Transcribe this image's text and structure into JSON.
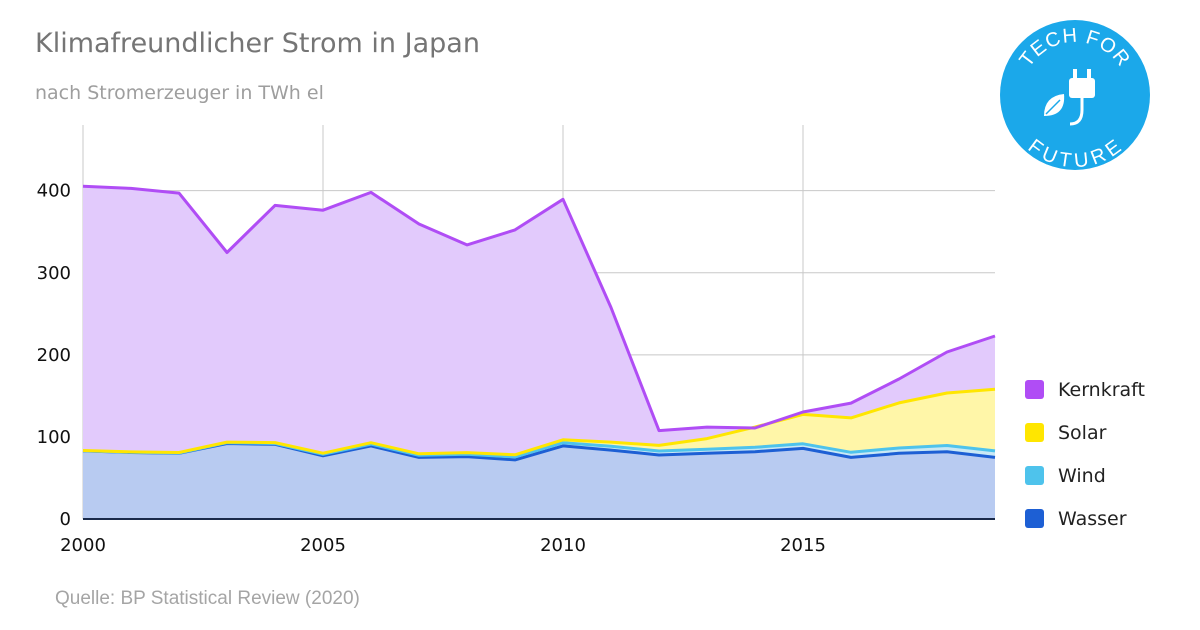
{
  "header": {
    "title": "Klimafreundlicher Strom in Japan",
    "subtitle": "nach Stromerzeuger in TWh el"
  },
  "footer": {
    "source": "Quelle: BP Statistical Review (2020)"
  },
  "logo": {
    "top_text": "TECH FOR",
    "bottom_text": "FUTURE",
    "color": "#1ba8ea",
    "icon": "plug-leaf-icon"
  },
  "colors": {
    "Wasser": "#1d5fd4",
    "Wind": "#4ec3ec",
    "Solar": "#ffe600",
    "Kernkraft": "#b04df5",
    "Wasser_fill": "#b8cbf1",
    "Wind_fill": "#c9e8f5",
    "Solar_fill": "#fff6a8",
    "Kernkraft_fill": "#e2cafc"
  },
  "chart_data": {
    "type": "area",
    "stacked": true,
    "x": [
      2000,
      2001,
      2002,
      2003,
      2004,
      2005,
      2006,
      2007,
      2008,
      2009,
      2010,
      2011,
      2012,
      2013,
      2014,
      2015,
      2016,
      2017,
      2018,
      2019
    ],
    "x_ticks": [
      "2000",
      "2005",
      "2010",
      "2015"
    ],
    "y_ticks": [
      "0",
      "100",
      "200",
      "300",
      "400"
    ],
    "ylim": [
      0,
      480
    ],
    "xlim": [
      2000,
      2019
    ],
    "grid": true,
    "legend_position": "right",
    "series": [
      {
        "name": "Wasser",
        "values": [
          83,
          81,
          80,
          92,
          91,
          77,
          89,
          75,
          76,
          72,
          89,
          84,
          78,
          80,
          82,
          86,
          75,
          80,
          82,
          75
        ]
      },
      {
        "name": "Wind",
        "values": [
          0.1,
          0.3,
          0.4,
          0.9,
          1.0,
          1.8,
          2.2,
          2.6,
          2.9,
          3.6,
          4.0,
          4.6,
          4.8,
          5.0,
          5.4,
          5.6,
          6.2,
          6.5,
          7.5,
          8.0
        ]
      },
      {
        "name": "Solar",
        "values": [
          0.4,
          0.5,
          0.6,
          0.8,
          1.1,
          1.4,
          1.7,
          1.8,
          2.0,
          2.6,
          3.5,
          5.1,
          6.9,
          13.0,
          24.5,
          35.8,
          42.0,
          55.0,
          64.0,
          75.0
        ]
      },
      {
        "name": "Kernkraft",
        "values": [
          322,
          321,
          316,
          231,
          289,
          296,
          305,
          280,
          253,
          274,
          293,
          164,
          18,
          14,
          -1,
          3,
          18,
          29,
          50,
          65
        ]
      }
    ]
  }
}
